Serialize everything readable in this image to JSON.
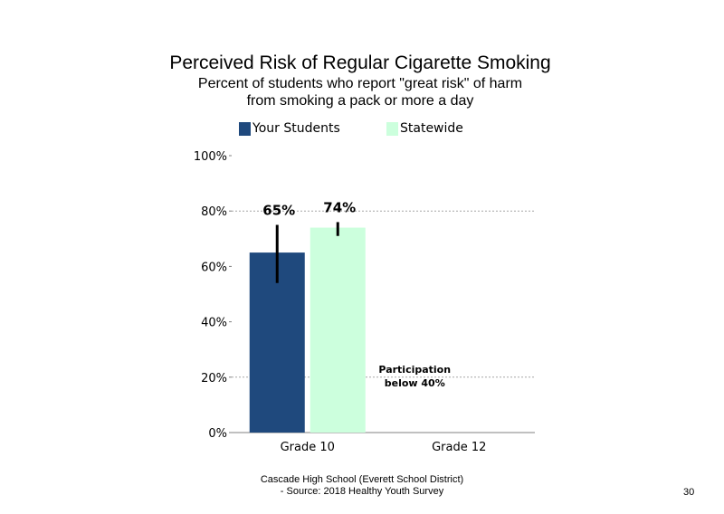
{
  "header": {
    "title": "Perceived Risk of Regular Cigarette Smoking",
    "subtitle_line1": "Percent of students who report \"great risk\" of harm",
    "subtitle_line2": "from smoking a pack or more a day"
  },
  "legend": {
    "items": [
      {
        "label": "Your Students",
        "color": "#1f497d"
      },
      {
        "label": "Statewide",
        "color": "#ccffdd"
      }
    ]
  },
  "chart_data": {
    "type": "bar",
    "categories": [
      "Grade 10",
      "Grade 12"
    ],
    "series": [
      {
        "name": "Your Students",
        "color": "#1f497d",
        "values": [
          65,
          null
        ],
        "labels": [
          "65%",
          null
        ],
        "error_low": [
          54,
          null
        ],
        "error_high": [
          75,
          null
        ]
      },
      {
        "name": "Statewide",
        "color": "#ccffdd",
        "values": [
          74,
          null
        ],
        "labels": [
          "74%",
          null
        ],
        "error_low": [
          71,
          null
        ],
        "error_high": [
          76,
          null
        ]
      }
    ],
    "ylim": [
      0,
      100
    ],
    "yticks": [
      0,
      20,
      40,
      60,
      80,
      100
    ],
    "ytick_labels": [
      "0%",
      "20%",
      "40%",
      "60%",
      "80%",
      "100%"
    ],
    "gridlines": [
      20,
      80
    ],
    "annotation": {
      "category": "Grade 12",
      "line1": "Participation",
      "line2": "below 40%"
    }
  },
  "footer": {
    "line1": "Cascade High School (Everett School District)",
    "line2": "- Source: 2018 Healthy Youth Survey",
    "page_number": "30"
  }
}
